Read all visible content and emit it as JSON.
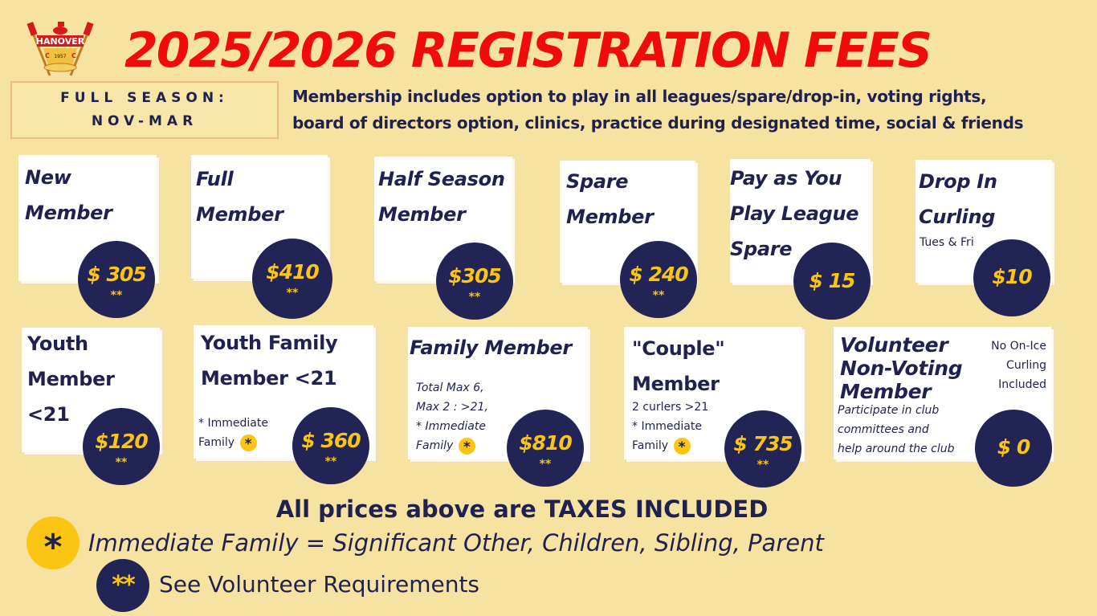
{
  "logo": {
    "text": "HANOVER",
    "year": "1957",
    "c1": "C",
    "c2": "C"
  },
  "title": "2025/2026 REGISTRATION FEES",
  "season": {
    "line1": "FULL SEASON:",
    "line2": "NOV-MAR"
  },
  "membership": {
    "line1": "Membership includes option to play in all leagues/spare/drop-in, voting rights,",
    "line2": "board of directors option, clinics, practice during designated time, social & friends"
  },
  "cards": {
    "new": {
      "line1": "New",
      "line2": "Member",
      "price": "$ 305",
      "stars": "**"
    },
    "full": {
      "line1": "Full",
      "line2": "Member",
      "price": "$410",
      "stars": "**"
    },
    "half": {
      "line1": "Half Season",
      "line2": "Member",
      "price": "$305",
      "stars": "**"
    },
    "spare": {
      "line1": "Spare",
      "line2": "Member",
      "price": "$ 240",
      "stars": "**"
    },
    "payg": {
      "line1": "Pay as You",
      "line2": "Play League",
      "line3": "Spare",
      "price": "$ 15"
    },
    "drop": {
      "line1": "Drop In",
      "line2": "Curling",
      "sub": "Tues & Fri",
      "price": "$10"
    },
    "youth": {
      "line1": "Youth",
      "line2": "Member",
      "line3": "<21",
      "price": "$120",
      "stars": "**"
    },
    "youthfam": {
      "line1": "Youth Family",
      "line2": "Member <21",
      "sub1": "* Immediate",
      "sub2": "Family",
      "dot": "*",
      "price": "$ 360",
      "stars": "**"
    },
    "family": {
      "line1": "Family Member",
      "sub1": "Total Max 6,",
      "sub2": "Max 2 : >21,",
      "sub3": "* Immediate",
      "sub4": "Family",
      "dot": "*",
      "price": "$810",
      "stars": "**"
    },
    "couple": {
      "line1": "\"Couple\"",
      "line2": "Member",
      "sub1": "2 curlers >21",
      "sub2": "* Immediate",
      "sub3": "Family",
      "dot": "*",
      "price": "$ 735",
      "stars": "**"
    },
    "volunteer": {
      "line1": "Volunteer",
      "line2": "Non-Voting",
      "line3": "Member",
      "note1": "No On-Ice",
      "note2": "Curling",
      "note3": "Included",
      "sub1": "Participate in club",
      "sub2": "committees and",
      "sub3": "help around the club",
      "price": "$ 0"
    }
  },
  "taxes": "All prices above are TAXES INCLUDED",
  "legend": {
    "star_symbol": "*",
    "star_text": "Immediate Family = Significant Other, Children, Sibling, Parent",
    "double_symbol": "**",
    "double_text": "See Volunteer Requirements"
  },
  "colors": {
    "background": "#f6e3a1",
    "title_red": "#f10b0b",
    "navy": "#222455",
    "gold": "#fcc514"
  }
}
